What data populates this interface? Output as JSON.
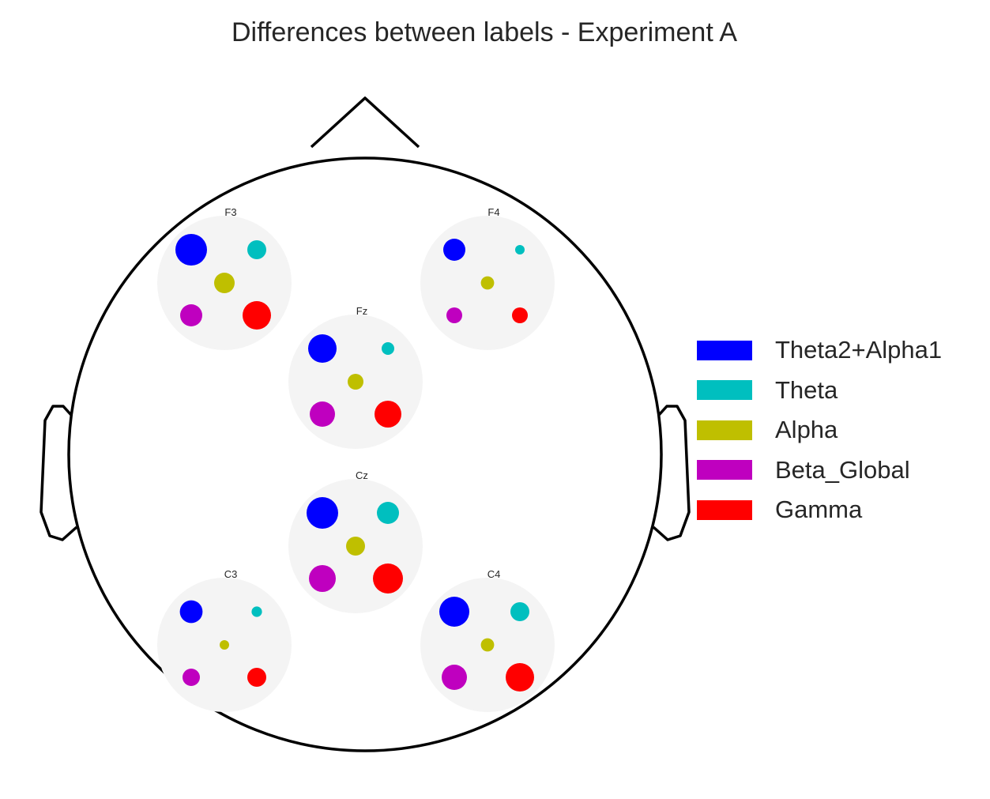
{
  "chart_data": {
    "type": "scatter",
    "title": "Differences between labels - Experiment A",
    "legend_position": "right",
    "series": [
      {
        "name": "Theta2+Alpha1",
        "color": "#0000ff"
      },
      {
        "name": "Theta",
        "color": "#00bfbf"
      },
      {
        "name": "Alpha",
        "color": "#bfbf00"
      },
      {
        "name": "Beta_Global",
        "color": "#bf00bf"
      },
      {
        "name": "Gamma",
        "color": "#ff0000"
      }
    ],
    "electrodes": [
      {
        "label": "F3",
        "values": [
          1.0,
          0.6,
          0.65,
          0.7,
          0.9
        ]
      },
      {
        "label": "F4",
        "values": [
          0.7,
          0.3,
          0.42,
          0.5,
          0.5
        ]
      },
      {
        "label": "Fz",
        "values": [
          0.9,
          0.4,
          0.5,
          0.8,
          0.85
        ]
      },
      {
        "label": "Cz",
        "values": [
          1.0,
          0.7,
          0.6,
          0.85,
          0.95
        ]
      },
      {
        "label": "C3",
        "values": [
          0.72,
          0.33,
          0.3,
          0.55,
          0.6
        ]
      },
      {
        "label": "C4",
        "values": [
          0.95,
          0.6,
          0.42,
          0.8,
          0.9
        ]
      }
    ]
  }
}
